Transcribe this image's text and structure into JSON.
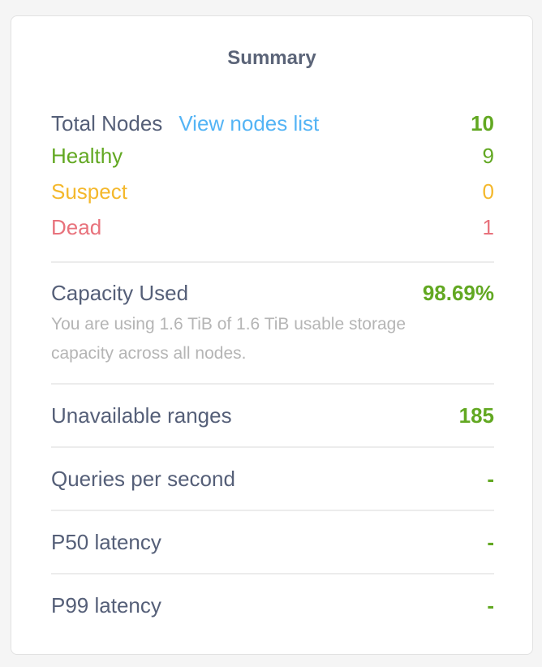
{
  "title": "Summary",
  "colors": {
    "green": "#62a822",
    "yellow": "#f4b82c",
    "red": "#e8727c",
    "link": "#54b4f5",
    "label": "#555f78"
  },
  "nodes": {
    "total_label": "Total Nodes",
    "view_link": "View nodes list",
    "total": "10",
    "healthy_label": "Healthy",
    "healthy": "9",
    "suspect_label": "Suspect",
    "suspect": "0",
    "dead_label": "Dead",
    "dead": "1"
  },
  "capacity": {
    "label": "Capacity Used",
    "value": "98.69%",
    "description": "You are using 1.6 TiB of 1.6 TiB usable storage capacity across all nodes."
  },
  "metrics": [
    {
      "label": "Unavailable ranges",
      "value": "185"
    },
    {
      "label": "Queries per second",
      "value": "-"
    },
    {
      "label": "P50 latency",
      "value": "-"
    },
    {
      "label": "P99 latency",
      "value": "-"
    }
  ]
}
